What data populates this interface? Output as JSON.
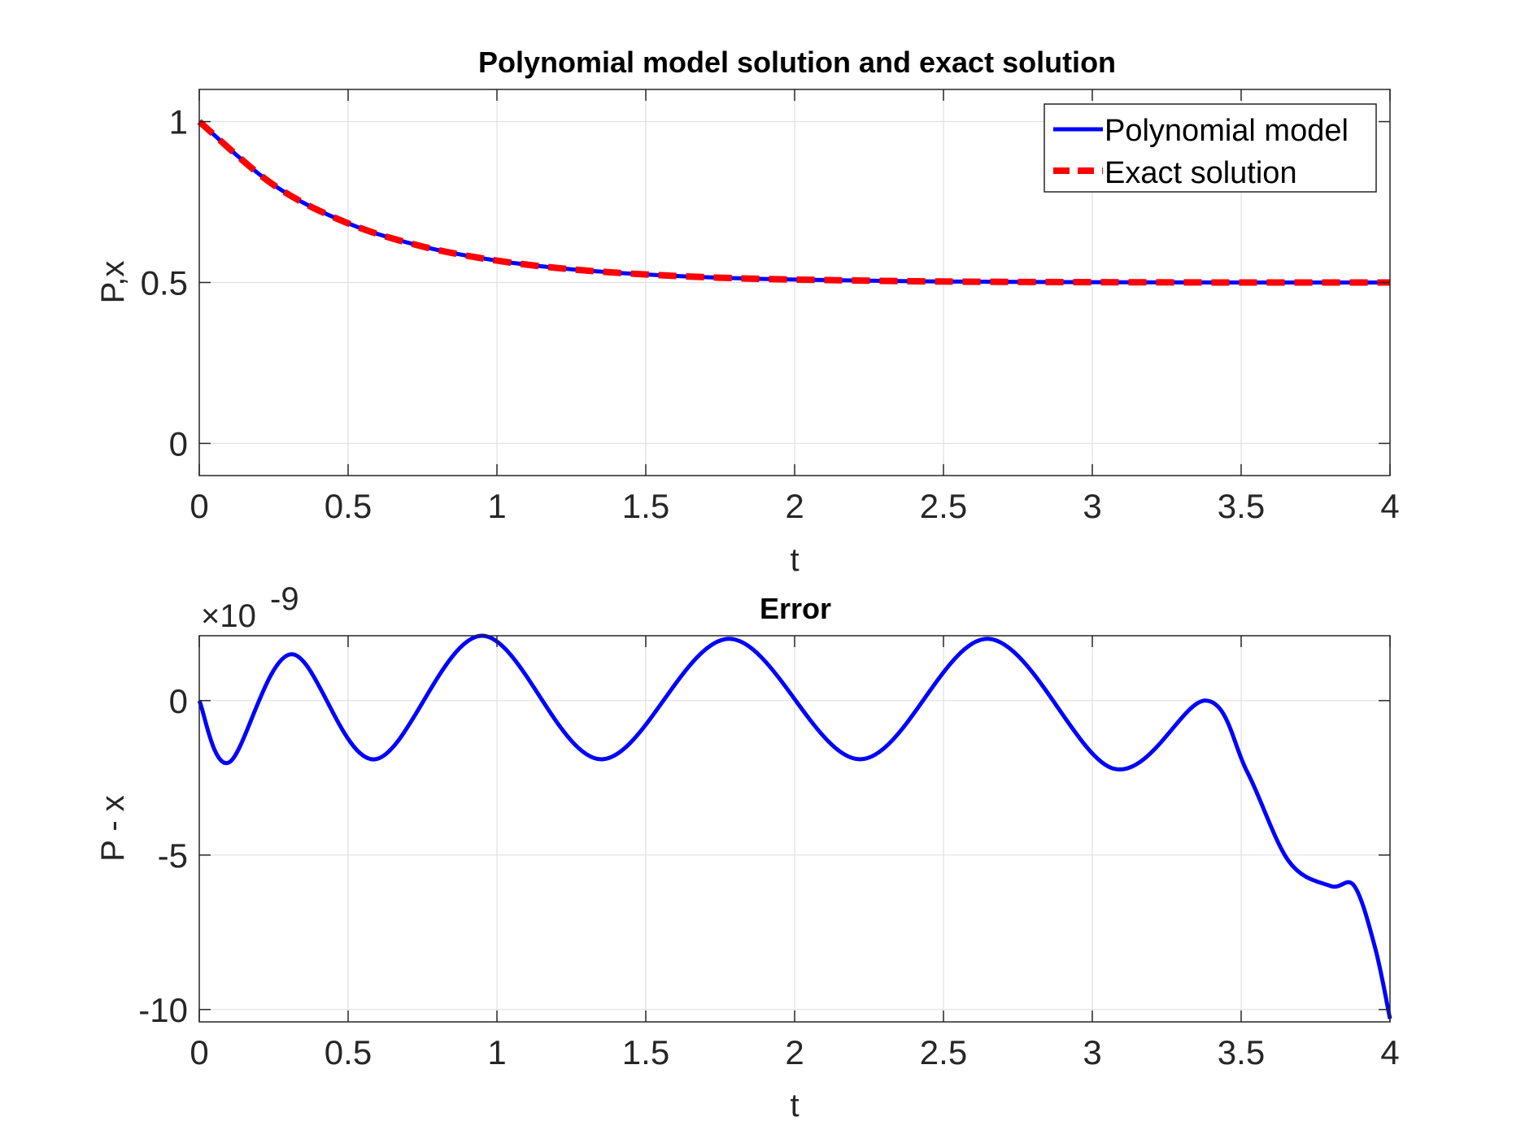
{
  "chart_data": [
    {
      "type": "line",
      "title": "Polynomial model solution and exact solution",
      "xlabel": "t",
      "ylabel": "P,x",
      "xlim": [
        0,
        4
      ],
      "ylim": [
        -0.1,
        1.1
      ],
      "xticks": [
        0,
        0.5,
        1,
        1.5,
        2,
        2.5,
        3,
        3.5,
        4
      ],
      "xtick_labels": [
        "0",
        "0.5",
        "1",
        "1.5",
        "2",
        "2.5",
        "3",
        "3.5",
        "4"
      ],
      "yticks": [
        0,
        0.5,
        1
      ],
      "ytick_labels": [
        "0",
        "0.5",
        "1"
      ],
      "grid": true,
      "legend_position": "top-right",
      "series": [
        {
          "name": "Polynomial model",
          "color": "#0000ff",
          "style": "solid",
          "x": [
            0,
            0.25,
            0.5,
            0.75,
            1,
            1.25,
            1.5,
            1.75,
            2,
            2.5,
            3,
            3.5,
            4
          ],
          "y": [
            1.0,
            0.803,
            0.684,
            0.612,
            0.568,
            0.541,
            0.525,
            0.515,
            0.509,
            0.503,
            0.501,
            0.5,
            0.5
          ]
        },
        {
          "name": "Exact solution",
          "color": "#ff0000",
          "style": "dashed",
          "x": [
            0,
            0.25,
            0.5,
            0.75,
            1,
            1.25,
            1.5,
            1.75,
            2,
            2.5,
            3,
            3.5,
            4
          ],
          "y": [
            1.0,
            0.803,
            0.684,
            0.612,
            0.568,
            0.541,
            0.525,
            0.515,
            0.509,
            0.503,
            0.501,
            0.5,
            0.5
          ]
        }
      ]
    },
    {
      "type": "line",
      "title": "Error",
      "xlabel": "t",
      "ylabel": "P - x",
      "y_multiplier_base": "×10",
      "y_multiplier_exponent": "-9",
      "xlim": [
        0,
        4
      ],
      "ylim": [
        -10.4,
        2.1
      ],
      "xticks": [
        0,
        0.5,
        1,
        1.5,
        2,
        2.5,
        3,
        3.5,
        4
      ],
      "xtick_labels": [
        "0",
        "0.5",
        "1",
        "1.5",
        "2",
        "2.5",
        "3",
        "3.5",
        "4"
      ],
      "yticks": [
        -10,
        -5,
        0
      ],
      "ytick_labels": [
        "-10",
        "-5",
        "0"
      ],
      "grid": true,
      "series": [
        {
          "name": "P - x",
          "color": "#0000ff",
          "style": "solid",
          "x": [
            0,
            0.1,
            0.31,
            0.59,
            0.95,
            1.35,
            1.78,
            2.22,
            2.65,
            3.07,
            3.38,
            3.52,
            3.66,
            3.8,
            3.88,
            3.95,
            4.0
          ],
          "y": [
            0,
            -2.0,
            1.5,
            -1.9,
            2.1,
            -1.9,
            2.0,
            -1.9,
            2.0,
            -2.2,
            0,
            -2.3,
            -5.2,
            -6.0,
            -6.0,
            -8.0,
            -10.3
          ]
        }
      ]
    }
  ]
}
